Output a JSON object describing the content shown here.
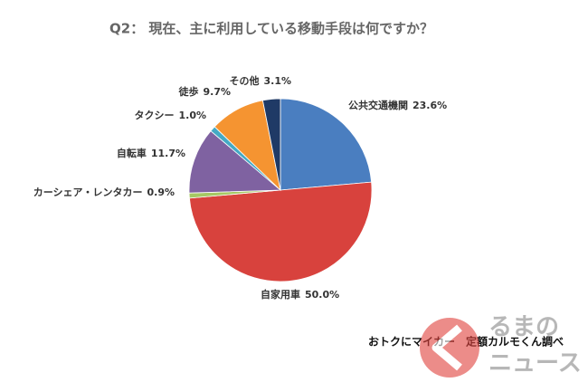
{
  "chart_data": {
    "type": "pie",
    "title": "Q2： 現在、主に利用している移動手段は何ですか？",
    "categories": [
      "公共交通機関",
      "自家用車",
      "カーシェア・レンタカー",
      "自転車",
      "タクシー",
      "徒歩",
      "その他"
    ],
    "values": [
      23.6,
      50.0,
      0.9,
      11.7,
      1.0,
      9.7,
      3.1
    ],
    "value_labels": [
      "23.6%",
      "50.0%",
      "0.9%",
      "11.7%",
      "1.0%",
      "9.7%",
      "3.1%"
    ],
    "colors": [
      "#4a7ec0",
      "#d8423d",
      "#a6c863",
      "#7f62a1",
      "#45a9c4",
      "#f59431",
      "#1f3a66"
    ],
    "source": "おトクにマイカー　定額カルモくん調べ"
  },
  "logo": {
    "text_top": "るまの",
    "text_bottom": "ニュース"
  }
}
